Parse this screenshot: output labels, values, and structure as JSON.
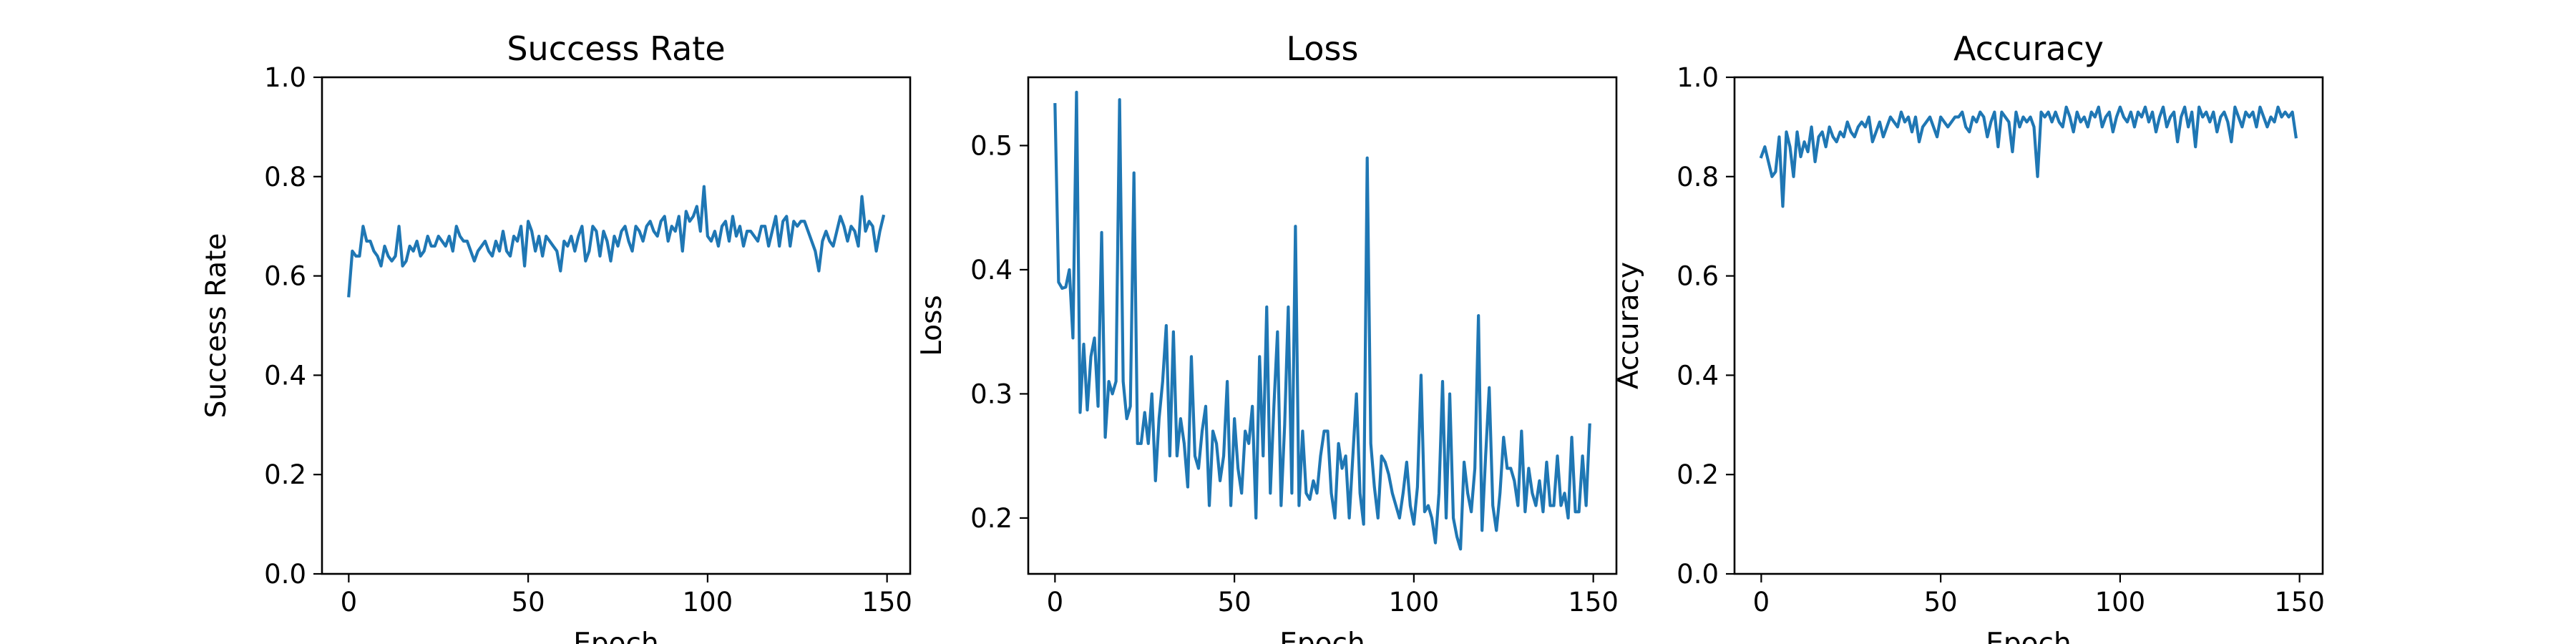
{
  "chart_data": [
    {
      "type": "line",
      "title": "Success Rate",
      "xlabel": "Epoch",
      "ylabel": "Success Rate",
      "xlim": [
        -7.45,
        156.45
      ],
      "ylim": [
        0.0,
        1.0
      ],
      "xticks": [
        0,
        50,
        100,
        150
      ],
      "yticks": [
        0.0,
        0.2,
        0.4,
        0.6,
        0.8,
        1.0
      ],
      "ytick_decimals": 1,
      "grid": false,
      "color": "#1f77b4",
      "series": [
        {
          "values": [
            0.56,
            0.65,
            0.64,
            0.64,
            0.7,
            0.67,
            0.67,
            0.65,
            0.64,
            0.62,
            0.66,
            0.64,
            0.63,
            0.64,
            0.7,
            0.62,
            0.63,
            0.66,
            0.65,
            0.67,
            0.64,
            0.65,
            0.68,
            0.66,
            0.66,
            0.68,
            0.67,
            0.66,
            0.68,
            0.65,
            0.7,
            0.68,
            0.67,
            0.67,
            0.65,
            0.63,
            0.65,
            0.66,
            0.67,
            0.65,
            0.64,
            0.67,
            0.65,
            0.69,
            0.65,
            0.64,
            0.68,
            0.67,
            0.7,
            0.62,
            0.71,
            0.69,
            0.65,
            0.68,
            0.64,
            0.68,
            0.67,
            0.66,
            0.65,
            0.61,
            0.67,
            0.66,
            0.68,
            0.65,
            0.68,
            0.7,
            0.63,
            0.65,
            0.7,
            0.69,
            0.64,
            0.69,
            0.67,
            0.63,
            0.68,
            0.66,
            0.69,
            0.7,
            0.67,
            0.65,
            0.7,
            0.69,
            0.67,
            0.7,
            0.71,
            0.69,
            0.68,
            0.71,
            0.72,
            0.67,
            0.7,
            0.69,
            0.72,
            0.65,
            0.73,
            0.71,
            0.72,
            0.74,
            0.69,
            0.78,
            0.68,
            0.67,
            0.69,
            0.66,
            0.7,
            0.71,
            0.67,
            0.72,
            0.68,
            0.7,
            0.66,
            0.69,
            0.69,
            0.68,
            0.67,
            0.7,
            0.7,
            0.66,
            0.69,
            0.72,
            0.66,
            0.71,
            0.72,
            0.66,
            0.71,
            0.7,
            0.71,
            0.71,
            0.69,
            0.67,
            0.65,
            0.61,
            0.67,
            0.69,
            0.67,
            0.66,
            0.69,
            0.72,
            0.7,
            0.67,
            0.7,
            0.69,
            0.66,
            0.76,
            0.69,
            0.71,
            0.7,
            0.65,
            0.69,
            0.72
          ]
        }
      ]
    },
    {
      "type": "line",
      "title": "Loss",
      "xlabel": "Epoch",
      "ylabel": "Loss",
      "xlim": [
        -7.45,
        156.45
      ],
      "ylim": [
        0.155,
        0.555
      ],
      "xticks": [
        0,
        50,
        100,
        150
      ],
      "yticks": [
        0.2,
        0.3,
        0.4,
        0.5
      ],
      "ytick_decimals": 1,
      "grid": false,
      "color": "#1f77b4",
      "series": [
        {
          "values": [
            0.533,
            0.39,
            0.385,
            0.386,
            0.4,
            0.345,
            0.543,
            0.285,
            0.34,
            0.287,
            0.33,
            0.345,
            0.29,
            0.43,
            0.265,
            0.31,
            0.3,
            0.31,
            0.537,
            0.31,
            0.28,
            0.29,
            0.478,
            0.26,
            0.26,
            0.285,
            0.26,
            0.3,
            0.23,
            0.28,
            0.31,
            0.355,
            0.25,
            0.35,
            0.25,
            0.28,
            0.26,
            0.225,
            0.33,
            0.25,
            0.24,
            0.27,
            0.29,
            0.21,
            0.27,
            0.26,
            0.23,
            0.25,
            0.31,
            0.21,
            0.28,
            0.24,
            0.22,
            0.27,
            0.26,
            0.29,
            0.2,
            0.33,
            0.25,
            0.37,
            0.22,
            0.29,
            0.35,
            0.21,
            0.275,
            0.37,
            0.22,
            0.435,
            0.21,
            0.27,
            0.22,
            0.215,
            0.23,
            0.22,
            0.25,
            0.27,
            0.27,
            0.22,
            0.2,
            0.26,
            0.24,
            0.25,
            0.2,
            0.25,
            0.3,
            0.22,
            0.195,
            0.49,
            0.26,
            0.225,
            0.2,
            0.25,
            0.245,
            0.235,
            0.22,
            0.21,
            0.2,
            0.22,
            0.245,
            0.21,
            0.195,
            0.225,
            0.315,
            0.205,
            0.21,
            0.2,
            0.18,
            0.22,
            0.31,
            0.2,
            0.3,
            0.2,
            0.185,
            0.175,
            0.245,
            0.22,
            0.205,
            0.24,
            0.363,
            0.19,
            0.25,
            0.305,
            0.21,
            0.19,
            0.22,
            0.265,
            0.24,
            0.24,
            0.23,
            0.21,
            0.27,
            0.205,
            0.24,
            0.22,
            0.21,
            0.23,
            0.205,
            0.245,
            0.21,
            0.21,
            0.25,
            0.21,
            0.22,
            0.2,
            0.265,
            0.205,
            0.205,
            0.25,
            0.21,
            0.275
          ]
        }
      ]
    },
    {
      "type": "line",
      "title": "Accuracy",
      "xlabel": "Epoch",
      "ylabel": "Accuracy",
      "xlim": [
        -7.45,
        156.45
      ],
      "ylim": [
        0.0,
        1.0
      ],
      "xticks": [
        0,
        50,
        100,
        150
      ],
      "yticks": [
        0.0,
        0.2,
        0.4,
        0.6,
        0.8,
        1.0
      ],
      "ytick_decimals": 1,
      "grid": false,
      "color": "#1f77b4",
      "series": [
        {
          "values": [
            0.84,
            0.86,
            0.83,
            0.8,
            0.81,
            0.88,
            0.74,
            0.89,
            0.86,
            0.8,
            0.89,
            0.84,
            0.87,
            0.85,
            0.9,
            0.83,
            0.88,
            0.89,
            0.86,
            0.9,
            0.88,
            0.87,
            0.89,
            0.88,
            0.91,
            0.89,
            0.88,
            0.9,
            0.91,
            0.9,
            0.92,
            0.87,
            0.89,
            0.91,
            0.88,
            0.9,
            0.92,
            0.91,
            0.9,
            0.93,
            0.91,
            0.92,
            0.89,
            0.92,
            0.87,
            0.9,
            0.91,
            0.92,
            0.9,
            0.88,
            0.92,
            0.91,
            0.9,
            0.91,
            0.92,
            0.92,
            0.93,
            0.9,
            0.89,
            0.92,
            0.91,
            0.93,
            0.92,
            0.88,
            0.91,
            0.93,
            0.86,
            0.93,
            0.92,
            0.91,
            0.85,
            0.93,
            0.9,
            0.92,
            0.91,
            0.92,
            0.9,
            0.8,
            0.93,
            0.92,
            0.93,
            0.91,
            0.93,
            0.91,
            0.9,
            0.94,
            0.92,
            0.89,
            0.93,
            0.91,
            0.92,
            0.9,
            0.93,
            0.92,
            0.94,
            0.9,
            0.92,
            0.93,
            0.89,
            0.92,
            0.94,
            0.92,
            0.91,
            0.93,
            0.9,
            0.93,
            0.92,
            0.94,
            0.91,
            0.93,
            0.89,
            0.92,
            0.94,
            0.9,
            0.92,
            0.93,
            0.87,
            0.92,
            0.94,
            0.9,
            0.93,
            0.86,
            0.94,
            0.92,
            0.93,
            0.91,
            0.93,
            0.89,
            0.92,
            0.93,
            0.91,
            0.87,
            0.94,
            0.92,
            0.9,
            0.93,
            0.92,
            0.93,
            0.9,
            0.94,
            0.92,
            0.9,
            0.92,
            0.91,
            0.94,
            0.92,
            0.93,
            0.92,
            0.93,
            0.88
          ]
        }
      ]
    }
  ]
}
